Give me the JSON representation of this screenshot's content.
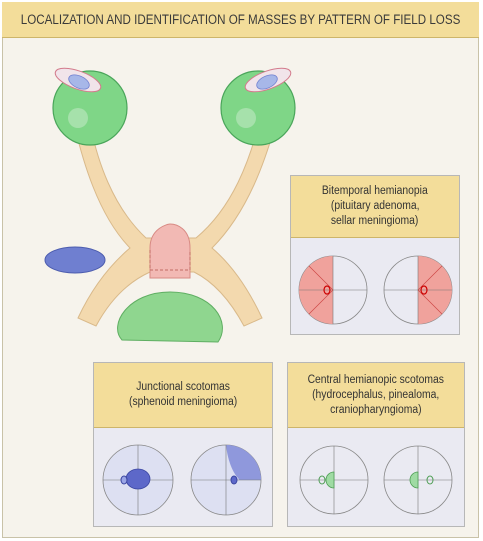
{
  "title": "LOCALIZATION AND IDENTIFICATION OF MASSES BY PATTERN OF FIELD LOSS",
  "panels": {
    "bitemporal": {
      "line1": "Bitemporal hemianopia",
      "line2": "(pituitary adenoma,",
      "line3": "sellar meningioma)"
    },
    "junctional": {
      "line1": "Junctional scotomas",
      "line2": "(sphenoid meningioma)"
    },
    "central": {
      "line1": "Central hemianopic scotomas",
      "line2": "(hydrocephalus, pinealoma,",
      "line3": "craniopharyngioma)"
    }
  },
  "colors": {
    "title_bg": "#f3dd9a",
    "nerve": "#f3d9ae",
    "eyeball": "#7fd687",
    "pituitary_mass": "#f2b9b4",
    "blue_mass": "#6f7fd0",
    "green_mass": "#8fd68f"
  }
}
